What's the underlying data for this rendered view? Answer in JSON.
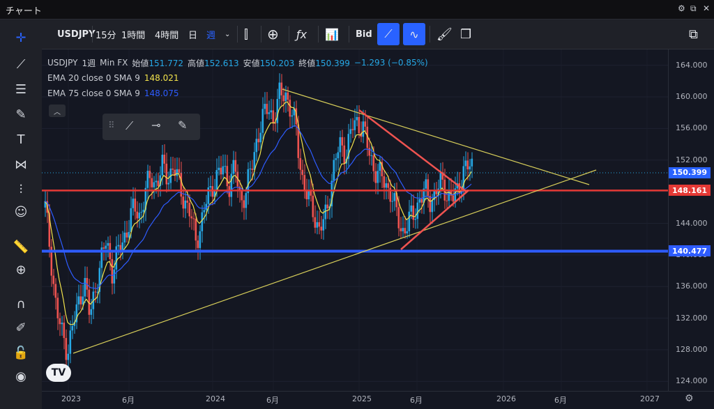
{
  "window": {
    "title": "チャート"
  },
  "toolbar": {
    "symbol": "USDJPY",
    "intervals": [
      "15分",
      "1時間",
      "4時間",
      "日",
      "週"
    ],
    "active_interval": "週",
    "bid_label": "Bid"
  },
  "legend": {
    "symbol": "USDJPY",
    "interval": "1週",
    "source": "Min FX",
    "open_label": "始値",
    "open": "151.772",
    "high_label": "高値",
    "high": "152.613",
    "low_label": "安値",
    "low": "150.203",
    "close_label": "終値",
    "close": "150.399",
    "change": "−1.293 (−0.85%)",
    "ema20": {
      "label": "EMA 20 close 0 SMA 9",
      "value": "148.021"
    },
    "ema75": {
      "label": "EMA 75 close 0 SMA 9",
      "value": "148.075"
    }
  },
  "colors": {
    "up": "#26a8e6",
    "down": "#ef5350",
    "ema20": "#f2e34c",
    "ema75": "#2e5cff",
    "accent": "#2962ff"
  },
  "chart_data": {
    "type": "candlestick",
    "y_ticks": [
      "164.000",
      "160.000",
      "156.000",
      "152.000",
      "148.000",
      "144.000",
      "140.000",
      "136.000",
      "132.000",
      "128.000",
      "124.000"
    ],
    "x_ticks": [
      "2023",
      "6月",
      "2024",
      "6月",
      "2025",
      "6月",
      "2026",
      "6月",
      "2027"
    ],
    "price_labels": {
      "last": "150.399",
      "red_line": "148.161",
      "blue_line": "140.477"
    },
    "ylim": [
      122.8,
      166.0
    ],
    "horizontal_lines": [
      148.161,
      140.477
    ]
  }
}
